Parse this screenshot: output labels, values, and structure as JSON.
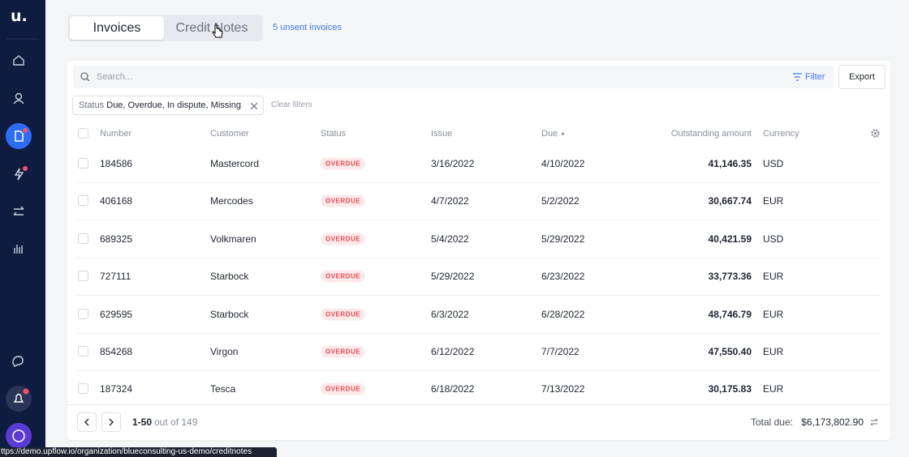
{
  "sidebar": {
    "logo": "u."
  },
  "tabs": [
    "Invoices",
    "Credit Notes"
  ],
  "unsent_link": "5 unsent invoices",
  "toolbar": {
    "search_placeholder": "Search...",
    "filter": "Filter",
    "export": "Export"
  },
  "filter_chip": {
    "label": "Status",
    "value": "Due, Overdue, In dispute, Missing"
  },
  "clear_filters": "Clear filters",
  "table": {
    "columns": [
      "Number",
      "Customer",
      "Status",
      "Issue",
      "Due",
      "Outstanding amount",
      "Currency"
    ],
    "rows": [
      [
        "184586",
        "Mastercord",
        "OVERDUE",
        "3/16/2022",
        "4/10/2022",
        "41,146.35",
        "USD"
      ],
      [
        "406168",
        "Mercodes",
        "OVERDUE",
        "4/7/2022",
        "5/2/2022",
        "30,667.74",
        "EUR"
      ],
      [
        "689325",
        "Volkmaren",
        "OVERDUE",
        "5/4/2022",
        "5/29/2022",
        "40,421.59",
        "USD"
      ],
      [
        "727111",
        "Starbock",
        "OVERDUE",
        "5/29/2022",
        "6/23/2022",
        "33,773.36",
        "EUR"
      ],
      [
        "629595",
        "Starbock",
        "OVERDUE",
        "6/3/2022",
        "6/28/2022",
        "48,746.79",
        "EUR"
      ],
      [
        "854268",
        "Virgon",
        "OVERDUE",
        "6/12/2022",
        "7/7/2022",
        "47,550.40",
        "EUR"
      ],
      [
        "187324",
        "Tesca",
        "OVERDUE",
        "6/18/2022",
        "7/13/2022",
        "30,175.83",
        "EUR"
      ]
    ]
  },
  "footer": {
    "range": "1-50",
    "out_of": "out of 149",
    "total_label": "Total due:",
    "total_value": "$6,173,802.90"
  },
  "status_url": "ttps://demo.upflow.io/organization/blueconsulting-us-demo/creditnotes"
}
